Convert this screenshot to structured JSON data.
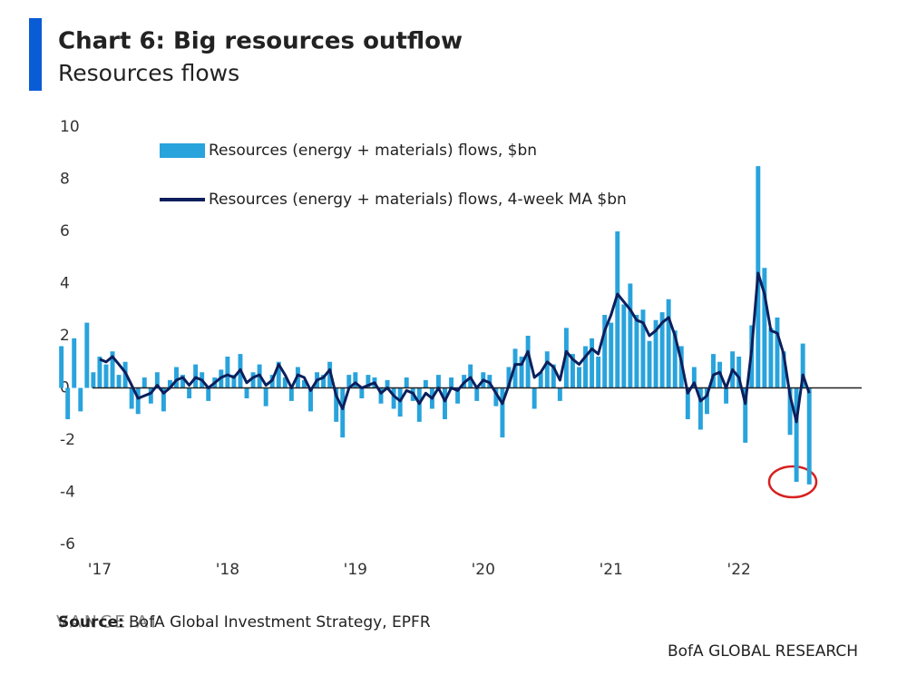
{
  "chart_data": {
    "type": "bar_line",
    "title": "Chart 6: Big resources outflow",
    "subtitle": "Resources flows",
    "source_label": "Source:",
    "source": "BofA Global Investment Strategy, EPFR",
    "footer": "BofA GLOBAL RESEARCH",
    "watermark": "VANCE.AI",
    "x": [
      2016.7,
      2016.75,
      2016.8,
      2016.85,
      2016.9,
      2016.95,
      2017.0,
      2017.05,
      2017.1,
      2017.15,
      2017.2,
      2017.25,
      2017.3,
      2017.35,
      2017.4,
      2017.45,
      2017.5,
      2017.55,
      2017.6,
      2017.65,
      2017.7,
      2017.75,
      2017.8,
      2017.85,
      2017.9,
      2017.95,
      2018.0,
      2018.05,
      2018.1,
      2018.15,
      2018.2,
      2018.25,
      2018.3,
      2018.35,
      2018.4,
      2018.45,
      2018.5,
      2018.55,
      2018.6,
      2018.65,
      2018.7,
      2018.75,
      2018.8,
      2018.85,
      2018.9,
      2018.95,
      2019.0,
      2019.05,
      2019.1,
      2019.15,
      2019.2,
      2019.25,
      2019.3,
      2019.35,
      2019.4,
      2019.45,
      2019.5,
      2019.55,
      2019.6,
      2019.65,
      2019.7,
      2019.75,
      2019.8,
      2019.85,
      2019.9,
      2019.95,
      2020.0,
      2020.05,
      2020.1,
      2020.15,
      2020.2,
      2020.25,
      2020.3,
      2020.35,
      2020.4,
      2020.45,
      2020.5,
      2020.55,
      2020.6,
      2020.65,
      2020.7,
      2020.75,
      2020.8,
      2020.85,
      2020.9,
      2020.95,
      2021.0,
      2021.05,
      2021.1,
      2021.15,
      2021.2,
      2021.25,
      2021.3,
      2021.35,
      2021.4,
      2021.45,
      2021.5,
      2021.55,
      2021.6,
      2021.65,
      2021.7,
      2021.75,
      2021.8,
      2021.85,
      2021.9,
      2021.95,
      2022.0,
      2022.05,
      2022.1,
      2022.15,
      2022.2,
      2022.25,
      2022.3,
      2022.35,
      2022.4,
      2022.45,
      2022.5,
      2022.55
    ],
    "series": [
      {
        "name": "Resources (energy + materials) flows, $bn",
        "kind": "bar",
        "color": "#29a3dc",
        "values": [
          1.6,
          -1.2,
          1.9,
          -0.9,
          2.5,
          0.6,
          1.2,
          0.9,
          1.4,
          0.5,
          1.0,
          -0.8,
          -1.0,
          0.4,
          -0.6,
          0.6,
          -0.9,
          0.3,
          0.8,
          0.5,
          -0.4,
          0.9,
          0.6,
          -0.5,
          0.4,
          0.7,
          1.2,
          0.5,
          1.3,
          -0.4,
          0.6,
          0.9,
          -0.7,
          0.5,
          1.0,
          0.4,
          -0.5,
          0.8,
          0.3,
          -0.9,
          0.6,
          0.5,
          1.0,
          -1.3,
          -1.9,
          0.5,
          0.6,
          -0.4,
          0.5,
          0.4,
          -0.6,
          0.3,
          -0.8,
          -1.1,
          0.4,
          -0.5,
          -1.3,
          0.3,
          -0.8,
          0.5,
          -1.2,
          0.4,
          -0.6,
          0.5,
          0.9,
          -0.5,
          0.6,
          0.5,
          -0.7,
          -1.9,
          0.8,
          1.5,
          1.2,
          2.0,
          -0.8,
          0.6,
          1.4,
          0.9,
          -0.5,
          2.3,
          1.3,
          0.8,
          1.6,
          1.9,
          1.2,
          2.8,
          2.5,
          6.0,
          3.2,
          4.0,
          2.8,
          3.0,
          1.8,
          2.6,
          2.9,
          3.4,
          2.2,
          1.6,
          -1.2,
          0.8,
          -1.6,
          -1.0,
          1.3,
          1.0,
          -0.6,
          1.4,
          1.2,
          -2.1,
          2.4,
          8.5,
          4.6,
          2.3,
          2.7,
          1.4,
          -1.8,
          -3.6,
          1.7,
          -3.7
        ]
      },
      {
        "name": "Resources (energy + materials) flows, 4-week MA $bn",
        "kind": "line",
        "color": "#0c1f5c",
        "values": [
          null,
          null,
          null,
          null,
          null,
          null,
          1.1,
          1.0,
          1.2,
          0.9,
          0.6,
          0.1,
          -0.4,
          -0.3,
          -0.2,
          0.1,
          -0.2,
          0.0,
          0.3,
          0.4,
          0.1,
          0.4,
          0.3,
          0.0,
          0.2,
          0.4,
          0.5,
          0.4,
          0.7,
          0.2,
          0.4,
          0.5,
          0.1,
          0.3,
          0.9,
          0.5,
          0.0,
          0.5,
          0.4,
          -0.1,
          0.3,
          0.4,
          0.7,
          -0.3,
          -0.8,
          0.0,
          0.2,
          0.0,
          0.1,
          0.2,
          -0.2,
          0.0,
          -0.3,
          -0.5,
          -0.1,
          -0.2,
          -0.6,
          -0.2,
          -0.4,
          0.0,
          -0.5,
          0.0,
          -0.1,
          0.2,
          0.4,
          0.0,
          0.3,
          0.2,
          -0.2,
          -0.6,
          0.1,
          0.9,
          0.9,
          1.4,
          0.4,
          0.6,
          1.0,
          0.8,
          0.3,
          1.4,
          1.1,
          0.9,
          1.2,
          1.5,
          1.3,
          2.2,
          2.8,
          3.6,
          3.3,
          3.0,
          2.6,
          2.5,
          2.0,
          2.2,
          2.5,
          2.7,
          2.0,
          1.0,
          -0.2,
          0.2,
          -0.5,
          -0.3,
          0.5,
          0.6,
          0.0,
          0.7,
          0.4,
          -0.6,
          1.5,
          4.4,
          3.6,
          2.2,
          2.1,
          1.3,
          -0.3,
          -1.3,
          0.5,
          -0.2
        ]
      }
    ],
    "xlim": [
      2016.66,
      2022.96
    ],
    "xticks": [
      {
        "value": 2017,
        "label": "'17"
      },
      {
        "value": 2018,
        "label": "'18"
      },
      {
        "value": 2019,
        "label": "'19"
      },
      {
        "value": 2020,
        "label": "'20"
      },
      {
        "value": 2021,
        "label": "'21"
      },
      {
        "value": 2022,
        "label": "'22"
      }
    ],
    "ylim": [
      -6,
      10
    ],
    "yticks": [
      10,
      8,
      6,
      4,
      2,
      0,
      -2,
      -4,
      -6
    ],
    "grid": false,
    "legend": "top-left"
  }
}
